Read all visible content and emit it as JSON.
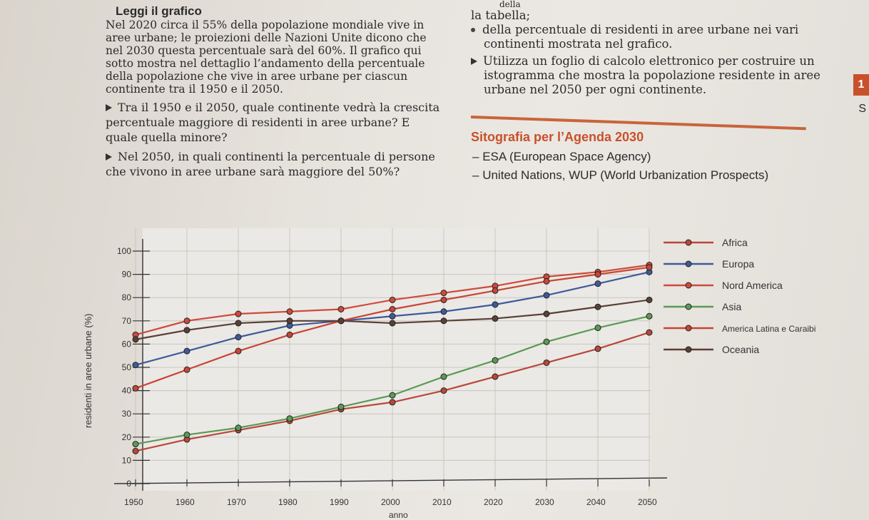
{
  "text": {
    "heading": "Leggi il grafico",
    "intro": "Nel 2020 circa il 55% della popolazione mondiale vive in aree urbane; le proiezioni delle Nazioni Unite dicono che nel 2030 questa percentuale sarà del 60%. Il grafico qui sotto mostra nel dettaglio l’andamento della percentuale della popolazione che vive in aree urbane per ciascun continente tra il 1950 e il 2050.",
    "q1": "Tra il 1950 e il 2050, quale continente vedrà la crescita percentuale maggiore di residenti in aree urbane? E quale quella minore?",
    "q2": "Nel 2050, in quali continenti la percentuale di persone che vivono in aree urbane sarà maggiore del 50%?",
    "right_top": "della",
    "right_1": "la tabella;",
    "right_2": "della percentuale di residenti in aree urbane nei vari continenti mostrata nel grafico.",
    "right_3": "Utilizza un foglio di calcolo elettronico per costruire un istogramma che mostra la popolazione residente in aree urbane nel 2050 per ogni continente.",
    "sito_title": "Sitografia per l’Agenda 2030",
    "sito_1": "ESA (European Space Agency)",
    "sito_2": "United Nations, WUP (World Urbanization Prospects)",
    "edge_num": "1",
    "edge_s": "S"
  },
  "chart_data": {
    "type": "line",
    "xlabel": "anno",
    "ylabel": "residenti in aree urbane (%)",
    "x": [
      1950,
      1960,
      1970,
      1980,
      1990,
      2000,
      2010,
      2020,
      2030,
      2040,
      2050
    ],
    "ylim": [
      0,
      100
    ],
    "yticks": [
      0,
      10,
      20,
      30,
      40,
      50,
      60,
      70,
      80,
      90,
      100
    ],
    "series": [
      {
        "name": "Africa",
        "color": "#b9473a",
        "values": [
          14,
          19,
          23,
          27,
          32,
          35,
          40,
          46,
          52,
          58,
          65
        ]
      },
      {
        "name": "Europa",
        "color": "#3f5a9a",
        "values": [
          51,
          57,
          63,
          68,
          70,
          72,
          74,
          77,
          81,
          86,
          91
        ]
      },
      {
        "name": "Nord America",
        "color": "#cf4a3c",
        "values": [
          64,
          70,
          73,
          74,
          75,
          79,
          82,
          85,
          89,
          91,
          94
        ]
      },
      {
        "name": "Asia",
        "color": "#5a9a55",
        "values": [
          17,
          21,
          24,
          28,
          33,
          38,
          46,
          53,
          61,
          67,
          72
        ]
      },
      {
        "name": "America Latina e Caraibi",
        "color": "#c84535",
        "values": [
          41,
          49,
          57,
          64,
          70,
          75,
          79,
          83,
          87,
          90,
          93
        ]
      },
      {
        "name": "Oceania",
        "color": "#5a4036",
        "values": [
          62,
          66,
          69,
          70,
          70,
          69,
          70,
          71,
          73,
          76,
          79
        ]
      }
    ]
  }
}
